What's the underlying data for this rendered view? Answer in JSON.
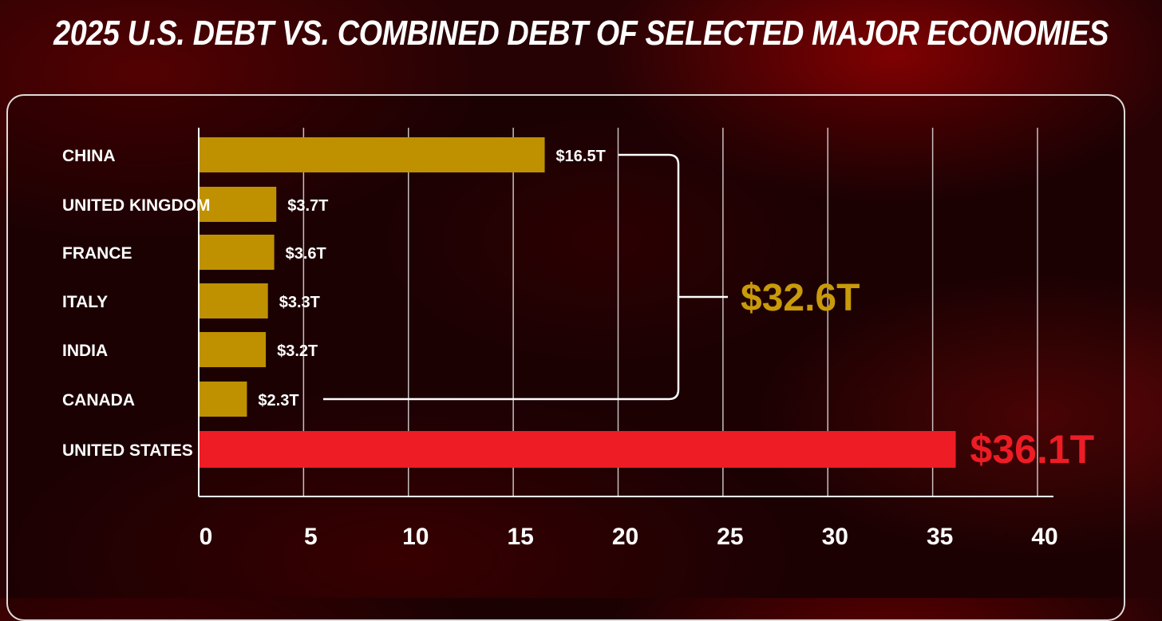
{
  "title": "2025 U.S. DEBT VS. COMBINED DEBT OF SELECTED MAJOR ECONOMIES",
  "chart_data": {
    "type": "bar",
    "orientation": "horizontal",
    "categories": [
      "CHINA",
      "UNITED KINGDOM",
      "FRANCE",
      "ITALY",
      "INDIA",
      "CANADA",
      "UNITED STATES"
    ],
    "values": [
      16.5,
      3.7,
      3.6,
      3.3,
      3.2,
      2.3,
      36.1
    ],
    "value_labels": [
      "$16.5T",
      "$3.7T",
      "$3.6T",
      "$3.3T",
      "$3.2T",
      "$2.3T",
      "$36.1T"
    ],
    "bar_colors": [
      "#bf9100",
      "#bf9100",
      "#bf9100",
      "#bf9100",
      "#bf9100",
      "#bf9100",
      "#ee1c25"
    ],
    "xlim": [
      0,
      40
    ],
    "x_ticks": [
      0,
      5,
      10,
      15,
      20,
      25,
      30,
      35,
      40
    ],
    "grid": true,
    "bracket": {
      "label": "$32.6T",
      "color": "#c99a0a",
      "from_category": "CHINA",
      "to_category": "CANADA"
    }
  }
}
